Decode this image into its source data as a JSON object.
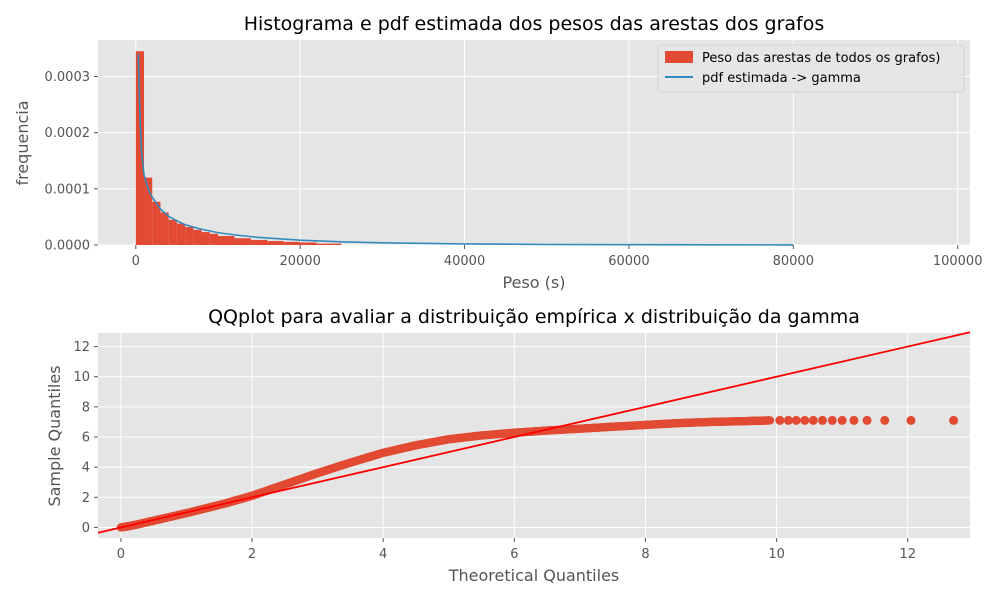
{
  "chart_data": [
    {
      "type": "bar",
      "title": "Histograma e pdf estimada dos pesos das arestas dos grafos",
      "xlabel": "Peso (s)",
      "ylabel": "frequencia",
      "xlim": [
        -4600,
        101500
      ],
      "ylim": [
        0,
        0.000365
      ],
      "xticks": [
        0,
        20000,
        40000,
        60000,
        80000,
        100000
      ],
      "xtick_labels": [
        "0",
        "20000",
        "40000",
        "60000",
        "80000",
        "100000"
      ],
      "yticks": [
        0,
        0.0001,
        0.0002,
        0.0003
      ],
      "ytick_labels": [
        "0.0000",
        "0.0001",
        "0.0002",
        "0.0003"
      ],
      "grid": true,
      "legend_position": "top-right",
      "histogram": {
        "name": "Peso das arestas de todos os grafos)",
        "color": "#E24A33",
        "bins": [
          {
            "x0": 0,
            "x1": 1000,
            "y": 0.000345
          },
          {
            "x0": 1000,
            "x1": 2000,
            "y": 0.00012
          },
          {
            "x0": 2000,
            "x1": 3000,
            "y": 7.7e-05
          },
          {
            "x0": 3000,
            "x1": 4000,
            "y": 5.8e-05
          },
          {
            "x0": 4000,
            "x1": 5000,
            "y": 4.5e-05
          },
          {
            "x0": 5000,
            "x1": 6000,
            "y": 3.8e-05
          },
          {
            "x0": 6000,
            "x1": 7000,
            "y": 3.2e-05
          },
          {
            "x0": 7000,
            "x1": 8000,
            "y": 2.7e-05
          },
          {
            "x0": 8000,
            "x1": 9000,
            "y": 2.3e-05
          },
          {
            "x0": 9000,
            "x1": 10000,
            "y": 2e-05
          },
          {
            "x0": 10000,
            "x1": 12000,
            "y": 1.6e-05
          },
          {
            "x0": 12000,
            "x1": 14000,
            "y": 1.2e-05
          },
          {
            "x0": 14000,
            "x1": 16000,
            "y": 9e-06
          },
          {
            "x0": 16000,
            "x1": 18000,
            "y": 7e-06
          },
          {
            "x0": 18000,
            "x1": 20000,
            "y": 5.5e-06
          },
          {
            "x0": 20000,
            "x1": 22000,
            "y": 4.5e-06
          },
          {
            "x0": 22000,
            "x1": 25000,
            "y": 2.5e-06
          }
        ]
      },
      "line": {
        "name": "pdf estimada -> gamma",
        "color": "#348ABD",
        "x": [
          300,
          500,
          700,
          1000,
          1500,
          2000,
          3000,
          4000,
          5000,
          6000,
          8000,
          10000,
          12000,
          15000,
          20000,
          25000,
          30000,
          40000,
          50000,
          60000,
          70000,
          80000
        ],
        "y": [
          0.00034,
          0.00023,
          0.000165,
          0.000125,
          0.0001,
          8.5e-05,
          6.4e-05,
          5.1e-05,
          4.3e-05,
          3.6e-05,
          2.8e-05,
          2.2e-05,
          1.8e-05,
          1.35e-05,
          8.5e-06,
          5.7e-06,
          3.9e-06,
          1.9e-06,
          9e-07,
          5e-07,
          3e-07,
          2e-07
        ]
      }
    },
    {
      "type": "scatter",
      "title": "QQplot para avaliar a distribuição empírica x distribuição da gamma",
      "xlabel": "Theoretical Quantiles",
      "ylabel": "Sample Quantiles",
      "xlim": [
        -0.35,
        12.95
      ],
      "ylim": [
        -0.7,
        12.9
      ],
      "xticks": [
        0,
        2,
        4,
        6,
        8,
        10,
        12
      ],
      "xtick_labels": [
        "0",
        "2",
        "4",
        "6",
        "8",
        "10",
        "12"
      ],
      "yticks": [
        0,
        2,
        4,
        6,
        8,
        10,
        12
      ],
      "ytick_labels": [
        "0",
        "2",
        "4",
        "6",
        "8",
        "10",
        "12"
      ],
      "grid": true,
      "point_color": "#E24A33",
      "line_color": "#FF0000",
      "curve": {
        "x": [
          0,
          0.2,
          0.5,
          1,
          1.6,
          2,
          2.5,
          3,
          3.5,
          4,
          4.5,
          5,
          5.5,
          6,
          6.5,
          7,
          7.5,
          8,
          8.5,
          9,
          9.5,
          9.9
        ],
        "y": [
          0,
          0.15,
          0.45,
          0.95,
          1.6,
          2.1,
          2.85,
          3.6,
          4.3,
          4.95,
          5.45,
          5.85,
          6.1,
          6.28,
          6.43,
          6.55,
          6.68,
          6.8,
          6.92,
          7.0,
          7.05,
          7.1
        ]
      },
      "outliers": {
        "x": [
          10.05,
          10.18,
          10.3,
          10.43,
          10.56,
          10.7,
          10.85,
          11.0,
          11.18,
          11.38,
          11.65,
          12.05,
          12.7
        ],
        "y": [
          7.1,
          7.1,
          7.1,
          7.1,
          7.1,
          7.1,
          7.1,
          7.1,
          7.1,
          7.1,
          7.1,
          7.1,
          7.1
        ]
      },
      "reference_line": {
        "x": [
          -0.35,
          12.95
        ],
        "y": [
          -0.35,
          12.95
        ]
      }
    }
  ]
}
